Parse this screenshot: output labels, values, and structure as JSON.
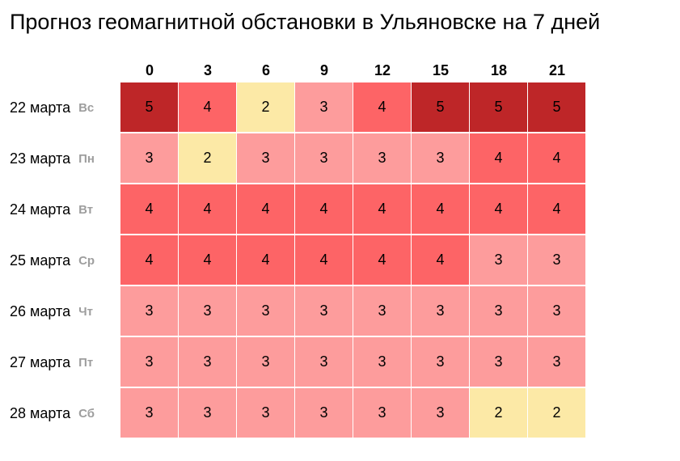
{
  "title": "Прогноз геомагнитной обстановки в Ульяновске на 7 дней",
  "colors": {
    "level_2": "#fce9a6",
    "level_3": "#fd9c9c",
    "level_4": "#fd6466",
    "level_5": "#be2628"
  },
  "chart_data": {
    "type": "heatmap",
    "columns": [
      "0",
      "3",
      "6",
      "9",
      "12",
      "15",
      "18",
      "21"
    ],
    "rows": [
      {
        "date": "22 марта",
        "day": "Вс",
        "values": [
          5,
          4,
          2,
          3,
          4,
          5,
          5,
          5
        ]
      },
      {
        "date": "23 марта",
        "day": "Пн",
        "values": [
          3,
          2,
          3,
          3,
          3,
          3,
          4,
          4
        ]
      },
      {
        "date": "24 марта",
        "day": "Вт",
        "values": [
          4,
          4,
          4,
          4,
          4,
          4,
          4,
          4
        ]
      },
      {
        "date": "25 марта",
        "day": "Ср",
        "values": [
          4,
          4,
          4,
          4,
          4,
          4,
          3,
          3
        ]
      },
      {
        "date": "26 марта",
        "day": "Чт",
        "values": [
          3,
          3,
          3,
          3,
          3,
          3,
          3,
          3
        ]
      },
      {
        "date": "27 марта",
        "day": "Пт",
        "values": [
          3,
          3,
          3,
          3,
          3,
          3,
          3,
          3
        ]
      },
      {
        "date": "28 марта",
        "day": "Сб",
        "values": [
          3,
          3,
          3,
          3,
          3,
          3,
          2,
          2
        ]
      }
    ]
  }
}
